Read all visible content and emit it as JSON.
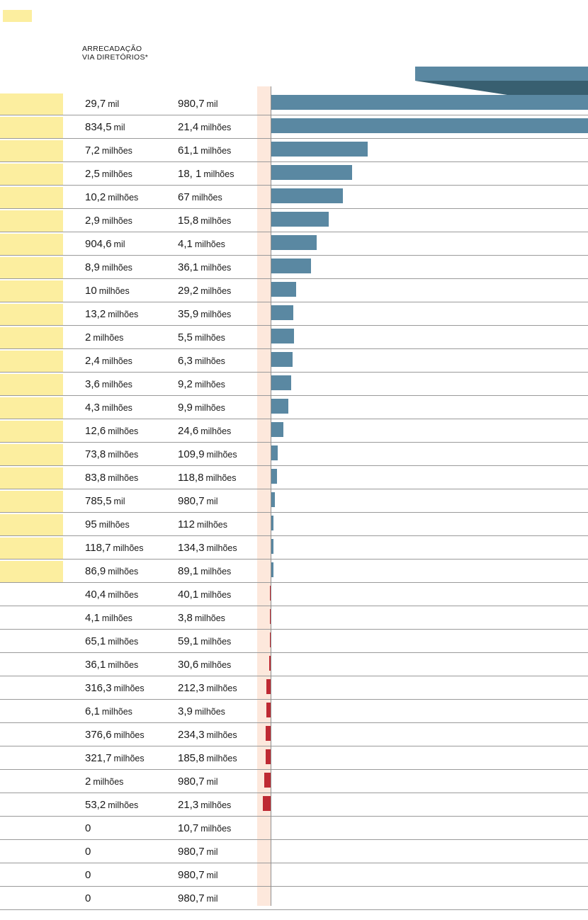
{
  "header": {
    "line1": "ARRECADAÇÃO",
    "line2": "VIA DIRETÓRIOS*"
  },
  "colors": {
    "positive": "#5a88a2",
    "negative": "#be2a33",
    "highlight": "#fcee9f",
    "zero_band": "#fde8dc"
  },
  "chart_data": {
    "type": "bar",
    "orientation": "horizontal",
    "title": "",
    "columns": [
      "ARRECADAÇÃO VIA DIRETÓRIOS*",
      ""
    ],
    "rows": [
      {
        "a_num": "29,7",
        "a_unit": "mil",
        "b_num": "980,7",
        "b_unit": "mil",
        "change": 3200,
        "highlight": true
      },
      {
        "a_num": "834,5",
        "a_unit": "mil",
        "b_num": "21,4",
        "b_unit": "milhões",
        "change": 2464,
        "highlight": true
      },
      {
        "a_num": "7,2",
        "a_unit": "milhões",
        "b_num": "61,1",
        "b_unit": "milhões",
        "change": 749,
        "highlight": true
      },
      {
        "a_num": "2,5",
        "a_unit": "milhões",
        "b_num": "18, 1",
        "b_unit": "milhões",
        "change": 624,
        "highlight": true
      },
      {
        "a_num": "10,2",
        "a_unit": "milhões",
        "b_num": "67",
        "b_unit": "milhões",
        "change": 557,
        "highlight": true
      },
      {
        "a_num": "2,9",
        "a_unit": "milhões",
        "b_num": "15,8",
        "b_unit": "milhões",
        "change": 445,
        "highlight": true
      },
      {
        "a_num": "904,6",
        "a_unit": "mil",
        "b_num": "4,1",
        "b_unit": "milhões",
        "change": 353,
        "highlight": true
      },
      {
        "a_num": "8,9",
        "a_unit": "milhões",
        "b_num": "36,1",
        "b_unit": "milhões",
        "change": 306,
        "highlight": true
      },
      {
        "a_num": "10",
        "a_unit": "milhões",
        "b_num": "29,2",
        "b_unit": "milhões",
        "change": 192,
        "highlight": true
      },
      {
        "a_num": "13,2",
        "a_unit": "milhões",
        "b_num": "35,9",
        "b_unit": "milhões",
        "change": 172,
        "highlight": true
      },
      {
        "a_num": "2",
        "a_unit": "milhões",
        "b_num": "5,5",
        "b_unit": "milhões",
        "change": 175,
        "highlight": true
      },
      {
        "a_num": "2,4",
        "a_unit": "milhões",
        "b_num": "6,3",
        "b_unit": "milhões",
        "change": 163,
        "highlight": true
      },
      {
        "a_num": "3,6",
        "a_unit": "milhões",
        "b_num": "9,2",
        "b_unit": "milhões",
        "change": 156,
        "highlight": true
      },
      {
        "a_num": "4,3",
        "a_unit": "milhões",
        "b_num": "9,9",
        "b_unit": "milhões",
        "change": 130,
        "highlight": true
      },
      {
        "a_num": "12,6",
        "a_unit": "milhões",
        "b_num": "24,6",
        "b_unit": "milhões",
        "change": 95,
        "highlight": true
      },
      {
        "a_num": "73,8",
        "a_unit": "milhões",
        "b_num": "109,9",
        "b_unit": "milhões",
        "change": 49,
        "highlight": true
      },
      {
        "a_num": "83,8",
        "a_unit": "milhões",
        "b_num": "118,8",
        "b_unit": "milhões",
        "change": 42,
        "highlight": true
      },
      {
        "a_num": "785,5",
        "a_unit": "mil",
        "b_num": "980,7",
        "b_unit": "mil",
        "change": 25,
        "highlight": true
      },
      {
        "a_num": "95",
        "a_unit": "milhões",
        "b_num": "112",
        "b_unit": "milhões",
        "change": 18,
        "highlight": true
      },
      {
        "a_num": "118,7",
        "a_unit": "milhões",
        "b_num": "134,3",
        "b_unit": "milhões",
        "change": 13,
        "highlight": true
      },
      {
        "a_num": "86,9",
        "a_unit": "milhões",
        "b_num": "89,1",
        "b_unit": "milhões",
        "change": 2.5,
        "highlight": true
      },
      {
        "a_num": "40,4",
        "a_unit": "milhões",
        "b_num": "40,1",
        "b_unit": "milhões",
        "change": -0.7,
        "highlight": false
      },
      {
        "a_num": "4,1",
        "a_unit": "milhões",
        "b_num": "3,8",
        "b_unit": "milhões",
        "change": -7,
        "highlight": false
      },
      {
        "a_num": "65,1",
        "a_unit": "milhões",
        "b_num": "59,1",
        "b_unit": "milhões",
        "change": -9,
        "highlight": false
      },
      {
        "a_num": "36,1",
        "a_unit": "milhões",
        "b_num": "30,6",
        "b_unit": "milhões",
        "change": -15,
        "highlight": false
      },
      {
        "a_num": "316,3",
        "a_unit": "milhões",
        "b_num": "212,3",
        "b_unit": "milhões",
        "change": -33,
        "highlight": false
      },
      {
        "a_num": "6,1",
        "a_unit": "milhões",
        "b_num": "3,9",
        "b_unit": "milhões",
        "change": -36,
        "highlight": false
      },
      {
        "a_num": "376,6",
        "a_unit": "milhões",
        "b_num": "234,3",
        "b_unit": "milhões",
        "change": -38,
        "highlight": false
      },
      {
        "a_num": "321,7",
        "a_unit": "milhões",
        "b_num": "185,8",
        "b_unit": "milhões",
        "change": -42,
        "highlight": false
      },
      {
        "a_num": "2",
        "a_unit": "milhões",
        "b_num": "980,7",
        "b_unit": "mil",
        "change": -51,
        "highlight": false
      },
      {
        "a_num": "53,2",
        "a_unit": "milhões",
        "b_num": "21,3",
        "b_unit": "milhões",
        "change": -60,
        "highlight": false
      },
      {
        "a_num": "0",
        "a_unit": "",
        "b_num": "10,7",
        "b_unit": "milhões",
        "change": 0,
        "highlight": false
      },
      {
        "a_num": "0",
        "a_unit": "",
        "b_num": "980,7",
        "b_unit": "mil",
        "change": 0,
        "highlight": false
      },
      {
        "a_num": "0",
        "a_unit": "",
        "b_num": "980,7",
        "b_unit": "mil",
        "change": 0,
        "highlight": false
      },
      {
        "a_num": "0",
        "a_unit": "",
        "b_num": "980,7",
        "b_unit": "mil",
        "change": 0,
        "highlight": false
      }
    ]
  }
}
